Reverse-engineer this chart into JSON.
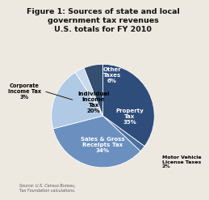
{
  "title": "Figure 1: Sources of state and local\ngovernment tax revenues\nU.S. totals for FY 2010",
  "slices": [
    {
      "label": "Property\nTax\n35%",
      "value": 35,
      "color": "#2e4d7b",
      "text_color": "white"
    },
    {
      "label": "Motor Vehicle\nLicense Taxes\n2%",
      "value": 2,
      "color": "#4a6fa0",
      "text_color": "white"
    },
    {
      "label": "Sales & Gross\nReceipts Tax\n34%",
      "value": 34,
      "color": "#6b90bf",
      "text_color": "white"
    },
    {
      "label": "Individual\nIncome\nTax\n20%",
      "value": 20,
      "color": "#b0c9e5",
      "text_color": "black"
    },
    {
      "label": "Corporate\nIncome Tax\n3%",
      "value": 3,
      "color": "#c9d9ee",
      "text_color": "black"
    },
    {
      "label": "Other\nTaxes\n6%",
      "value": 6,
      "color": "#344f72",
      "text_color": "white"
    }
  ],
  "source_text": "Source: U.S. Census Bureau,\nTax Foundation calculations.",
  "bg_color": "#ede9e0",
  "title_fontsize": 6.8,
  "label_fontsize": 5.0
}
